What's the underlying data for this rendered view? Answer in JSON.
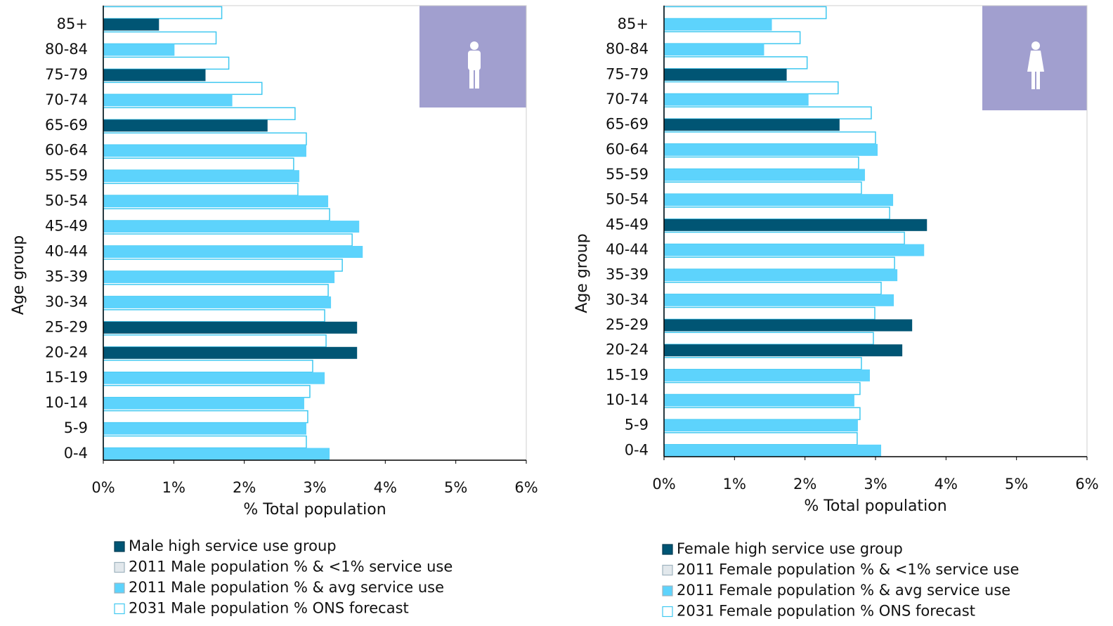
{
  "chart_data": [
    {
      "type": "bar",
      "orientation": "horizontal",
      "categories": [
        "0-4",
        "5-9",
        "10-14",
        "15-19",
        "20-24",
        "25-29",
        "30-34",
        "35-39",
        "40-44",
        "45-49",
        "50-54",
        "55-59",
        "60-64",
        "65-69",
        "70-74",
        "75-79",
        "80-84",
        "85+"
      ],
      "series": [
        {
          "name": "Male high service use group",
          "color": "#005574",
          "values": [
            null,
            null,
            null,
            null,
            3.6,
            3.6,
            null,
            null,
            null,
            null,
            null,
            null,
            null,
            2.33,
            null,
            1.45,
            null,
            0.79
          ]
        },
        {
          "name": "2011 Male population % & <1% service use",
          "color": "#e2e8ec",
          "values": [
            null,
            null,
            null,
            null,
            null,
            null,
            null,
            null,
            null,
            null,
            null,
            null,
            null,
            null,
            null,
            null,
            null,
            null
          ]
        },
        {
          "name": "2011 Male population % & avg service use",
          "color": "#5dd3fc",
          "values": [
            3.21,
            2.88,
            2.85,
            3.14,
            null,
            null,
            3.23,
            3.28,
            3.68,
            3.63,
            3.19,
            2.78,
            2.88,
            null,
            1.83,
            null,
            1.01,
            null
          ]
        },
        {
          "name": "2031 Male population % ONS forecast",
          "color": "#3fc8f0",
          "fill": "#ffffff",
          "values": [
            2.88,
            2.9,
            2.93,
            2.97,
            3.16,
            3.14,
            3.19,
            3.39,
            3.53,
            3.21,
            2.76,
            2.7,
            2.88,
            2.72,
            2.25,
            1.78,
            1.6,
            1.68
          ]
        }
      ],
      "xlim": [
        0,
        6
      ],
      "xticks": [
        {
          "value": 0,
          "label": "0%"
        },
        {
          "value": 1,
          "label": "1%"
        },
        {
          "value": 2,
          "label": "2%"
        },
        {
          "value": 3,
          "label": "3%"
        },
        {
          "value": 4,
          "label": "4%"
        },
        {
          "value": 5,
          "label": "5%"
        },
        {
          "value": 6,
          "label": "6%"
        }
      ],
      "xlabel": "% Total population",
      "ylabel": "Age group"
    },
    {
      "type": "bar",
      "orientation": "horizontal",
      "categories": [
        "0-4",
        "5-9",
        "10-14",
        "15-19",
        "20-24",
        "25-29",
        "30-34",
        "35-39",
        "40-44",
        "45-49",
        "50-54",
        "55-59",
        "60-64",
        "65-69",
        "70-74",
        "75-79",
        "80-84",
        "85+"
      ],
      "series": [
        {
          "name": "Female high service use group",
          "color": "#005574",
          "values": [
            null,
            null,
            null,
            null,
            3.38,
            3.52,
            null,
            null,
            null,
            3.73,
            null,
            null,
            null,
            2.49,
            null,
            1.74,
            null,
            null
          ]
        },
        {
          "name": "2011 Female population % & <1% service use",
          "color": "#e2e8ec",
          "values": [
            null,
            null,
            null,
            null,
            null,
            null,
            null,
            null,
            null,
            null,
            null,
            null,
            null,
            null,
            null,
            null,
            null,
            null
          ]
        },
        {
          "name": "2011 Female population % & avg service use",
          "color": "#5dd3fc",
          "values": [
            3.08,
            2.75,
            2.7,
            2.92,
            null,
            null,
            3.26,
            3.31,
            3.69,
            null,
            3.25,
            2.85,
            3.03,
            null,
            2.05,
            null,
            1.42,
            1.53
          ]
        },
        {
          "name": "2031 Female population % ONS forecast",
          "color": "#3fc8f0",
          "fill": "#ffffff",
          "values": [
            2.74,
            2.78,
            2.78,
            2.8,
            2.97,
            2.99,
            3.08,
            3.27,
            3.41,
            3.2,
            2.8,
            2.76,
            3.0,
            2.94,
            2.47,
            2.03,
            1.93,
            2.3
          ]
        }
      ],
      "xlim": [
        0,
        6
      ],
      "xticks": [
        {
          "value": 0,
          "label": "0%"
        },
        {
          "value": 1,
          "label": "1%"
        },
        {
          "value": 2,
          "label": "2%"
        },
        {
          "value": 3,
          "label": "3%"
        },
        {
          "value": 4,
          "label": "4%"
        },
        {
          "value": 5,
          "label": "5%"
        },
        {
          "value": 6,
          "label": "6%"
        }
      ],
      "xlabel": "% Total population",
      "ylabel": "Age group"
    }
  ]
}
